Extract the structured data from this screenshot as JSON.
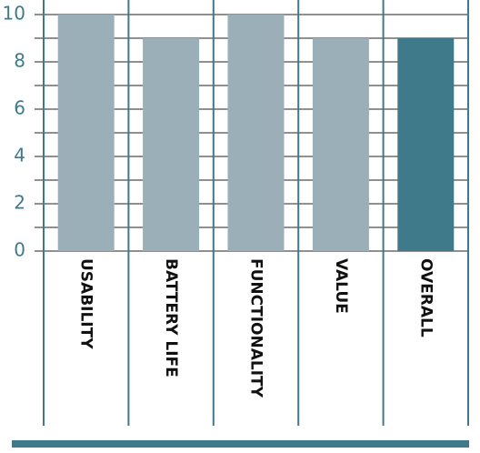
{
  "chart_data": {
    "type": "bar",
    "categories": [
      "USABILITY",
      "BATTERY LIFE",
      "FUNCTIONALITY",
      "VALUE",
      "OVERALL"
    ],
    "values": [
      10,
      9,
      10,
      9,
      9
    ],
    "colors": [
      "#9aafb8",
      "#9aafb8",
      "#9aafb8",
      "#9aafb8",
      "#3f7a8a"
    ],
    "ylim": [
      0,
      10
    ],
    "yticks": [
      0,
      2,
      4,
      6,
      8,
      10
    ],
    "minor_yticks": [
      1,
      3,
      5,
      7,
      9
    ],
    "grid": true
  }
}
